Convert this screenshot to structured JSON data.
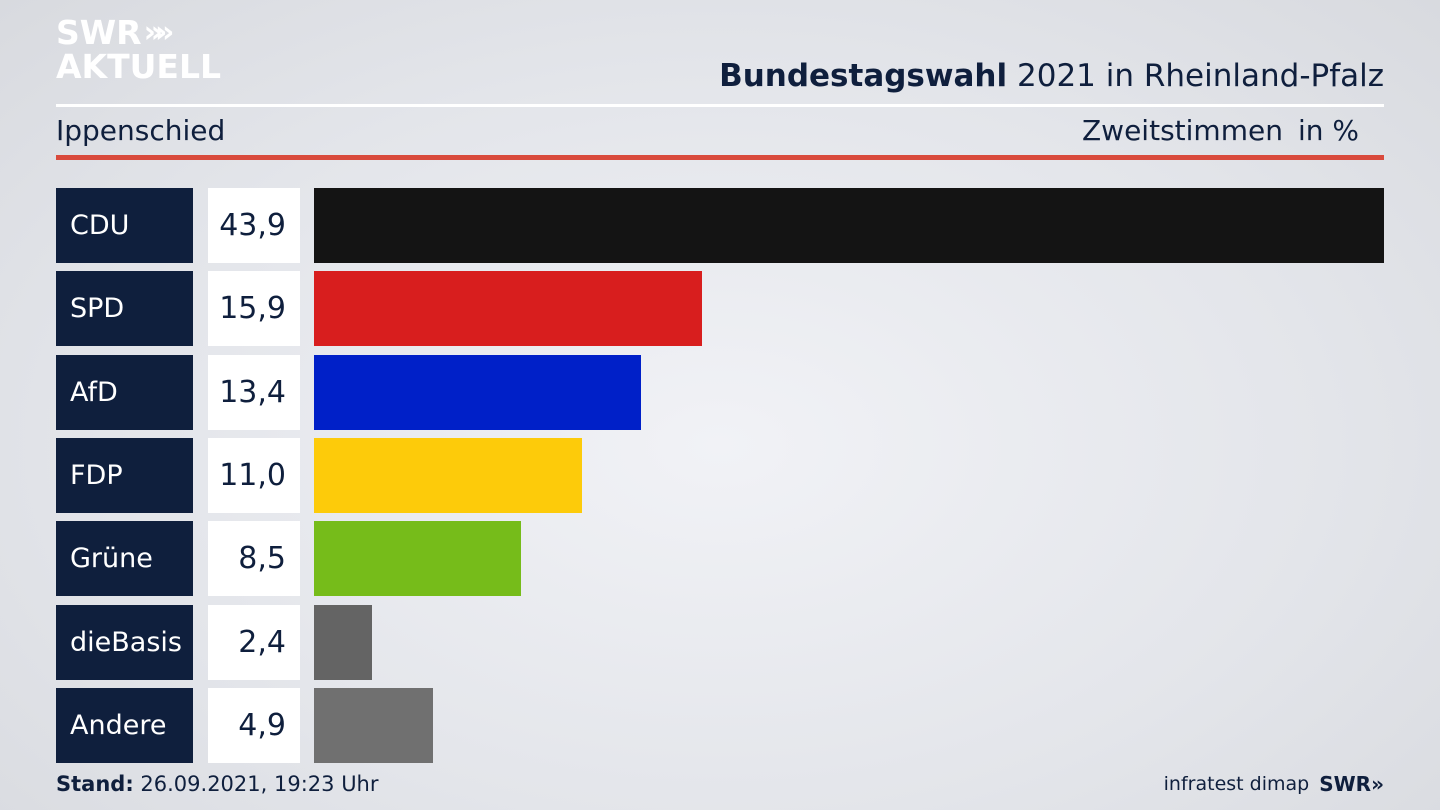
{
  "brand": {
    "line1": "SWR",
    "line2": "AKTUELL",
    "chevrons": "»"
  },
  "header": {
    "title_bold": "Bundestagswahl",
    "title_rest": "2021 in Rheinland-Pfalz",
    "region": "Ippenschied",
    "vote_type": "Zweitstimmen",
    "unit": "in %"
  },
  "rows": [
    {
      "party": "CDU",
      "value": "43,9"
    },
    {
      "party": "SPD",
      "value": "15,9"
    },
    {
      "party": "AfD",
      "value": "13,4"
    },
    {
      "party": "FDP",
      "value": "11,0"
    },
    {
      "party": "Grüne",
      "value": "8,5"
    },
    {
      "party": "dieBasis",
      "value": "2,4"
    },
    {
      "party": "Andere",
      "value": "4,9"
    }
  ],
  "chart_data": {
    "type": "bar",
    "orientation": "horizontal",
    "categories": [
      "CDU",
      "SPD",
      "AfD",
      "FDP",
      "Grüne",
      "dieBasis",
      "Andere"
    ],
    "values": [
      43.9,
      15.9,
      13.4,
      11.0,
      8.5,
      2.4,
      4.9
    ],
    "colors": [
      "#141414",
      "#d81e1e",
      "#0020c8",
      "#fdcb0a",
      "#76bc1a",
      "#646464",
      "#707070"
    ],
    "xlim": [
      0,
      43.9
    ],
    "unit": "in %",
    "grid": false
  },
  "footer": {
    "stand_label": "Stand:",
    "stand_value": "26.09.2021, 19:23 Uhr",
    "source": "infratest dimap",
    "logo": "SWR»"
  }
}
